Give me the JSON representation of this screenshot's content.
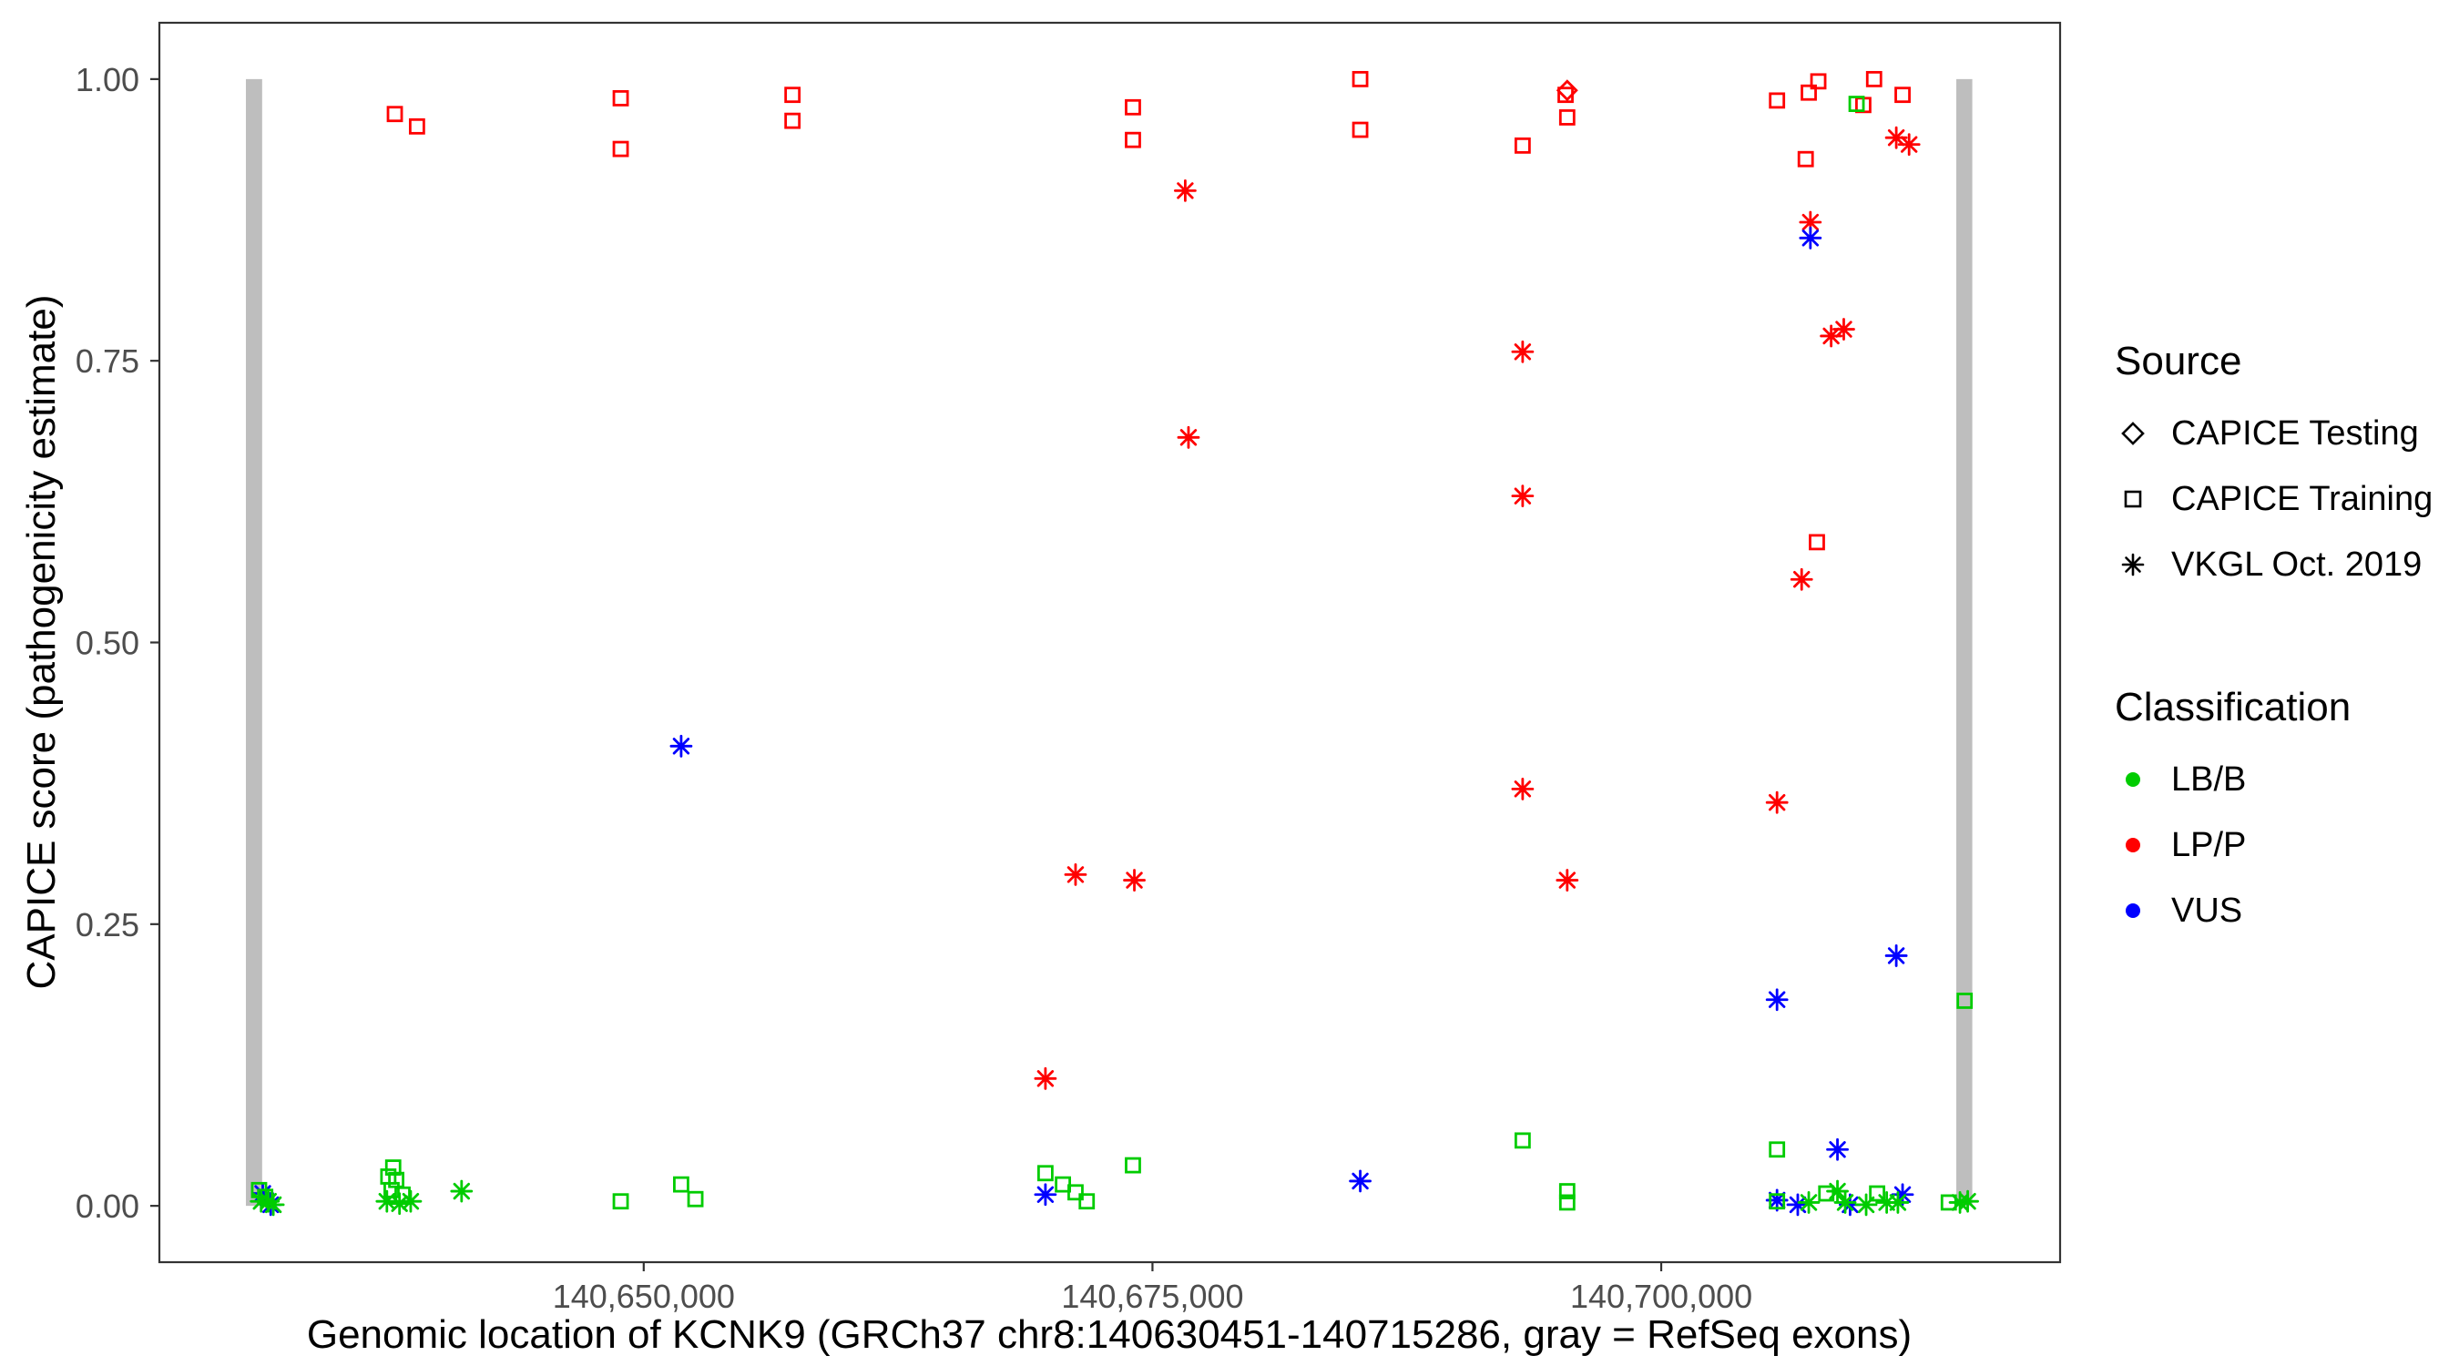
{
  "chart_data": {
    "type": "scatter",
    "title": "",
    "xlabel": "Genomic location of KCNK9 (GRCh37 chr8:140630451-140715286, gray = RefSeq exons)",
    "ylabel": "CAPICE score (pathogenicity estimate)",
    "xlim": [
      140626200,
      140719600
    ],
    "ylim": [
      -0.05,
      1.05
    ],
    "grid": false,
    "legend_position": "right",
    "x_ticks": [
      {
        "value": 140650000,
        "label": "140,650,000"
      },
      {
        "value": 140675000,
        "label": "140,675,000"
      },
      {
        "value": 140700000,
        "label": "140,700,000"
      }
    ],
    "y_ticks": [
      {
        "value": 0.0,
        "label": "0.00"
      },
      {
        "value": 0.25,
        "label": "0.25"
      },
      {
        "value": 0.5,
        "label": "0.50"
      },
      {
        "value": 0.75,
        "label": "0.75"
      },
      {
        "value": 1.0,
        "label": "1.00"
      }
    ],
    "colors": {
      "LB/B": "#00CC00",
      "LP/P": "#FF0000",
      "VUS": "#0000FF",
      "exon": "#BEBEBE",
      "axis": "#333333",
      "tick_text": "#4d4d4d"
    },
    "exons": [
      {
        "start": 140630451,
        "end": 140631250
      },
      {
        "start": 140714500,
        "end": 140715286
      }
    ],
    "points": [
      {
        "x": 140637770,
        "y": 0.969,
        "source": "training",
        "class": "LP/P"
      },
      {
        "x": 140638860,
        "y": 0.958,
        "source": "training",
        "class": "LP/P"
      },
      {
        "x": 140648870,
        "y": 0.983,
        "source": "training",
        "class": "LP/P"
      },
      {
        "x": 140648870,
        "y": 0.938,
        "source": "training",
        "class": "LP/P"
      },
      {
        "x": 140657310,
        "y": 0.986,
        "source": "training",
        "class": "LP/P"
      },
      {
        "x": 140657310,
        "y": 0.963,
        "source": "training",
        "class": "LP/P"
      },
      {
        "x": 140674040,
        "y": 0.975,
        "source": "training",
        "class": "LP/P"
      },
      {
        "x": 140674040,
        "y": 0.946,
        "source": "training",
        "class": "LP/P"
      },
      {
        "x": 140685210,
        "y": 1.0,
        "source": "training",
        "class": "LP/P"
      },
      {
        "x": 140685210,
        "y": 0.955,
        "source": "training",
        "class": "LP/P"
      },
      {
        "x": 140693190,
        "y": 0.941,
        "source": "training",
        "class": "LP/P"
      },
      {
        "x": 140695380,
        "y": 0.966,
        "source": "training",
        "class": "LP/P"
      },
      {
        "x": 140695300,
        "y": 0.986,
        "source": "training",
        "class": "LP/P"
      },
      {
        "x": 140705690,
        "y": 0.981,
        "source": "training",
        "class": "LP/P"
      },
      {
        "x": 140707250,
        "y": 0.988,
        "source": "training",
        "class": "LP/P"
      },
      {
        "x": 140707720,
        "y": 0.998,
        "source": "training",
        "class": "LP/P"
      },
      {
        "x": 140707100,
        "y": 0.929,
        "source": "training",
        "class": "LP/P"
      },
      {
        "x": 140709930,
        "y": 0.977,
        "source": "training",
        "class": "LP/P"
      },
      {
        "x": 140710460,
        "y": 1.0,
        "source": "training",
        "class": "LP/P"
      },
      {
        "x": 140711860,
        "y": 0.986,
        "source": "training",
        "class": "LP/P"
      },
      {
        "x": 140707650,
        "y": 0.589,
        "source": "training",
        "class": "LP/P"
      },
      {
        "x": 140695380,
        "y": 0.99,
        "source": "testing",
        "class": "LP/P"
      },
      {
        "x": 140676610,
        "y": 0.901,
        "source": "vkgl",
        "class": "LP/P"
      },
      {
        "x": 140676770,
        "y": 0.682,
        "source": "vkgl",
        "class": "LP/P"
      },
      {
        "x": 140671220,
        "y": 0.294,
        "source": "vkgl",
        "class": "LP/P"
      },
      {
        "x": 140674110,
        "y": 0.289,
        "source": "vkgl",
        "class": "LP/P"
      },
      {
        "x": 140669740,
        "y": 0.113,
        "source": "vkgl",
        "class": "LP/P"
      },
      {
        "x": 140693190,
        "y": 0.758,
        "source": "vkgl",
        "class": "LP/P"
      },
      {
        "x": 140693190,
        "y": 0.63,
        "source": "vkgl",
        "class": "LP/P"
      },
      {
        "x": 140693190,
        "y": 0.37,
        "source": "vkgl",
        "class": "LP/P"
      },
      {
        "x": 140695380,
        "y": 0.289,
        "source": "vkgl",
        "class": "LP/P"
      },
      {
        "x": 140707330,
        "y": 0.873,
        "source": "vkgl",
        "class": "LP/P"
      },
      {
        "x": 140708350,
        "y": 0.772,
        "source": "vkgl",
        "class": "LP/P"
      },
      {
        "x": 140708970,
        "y": 0.778,
        "source": "vkgl",
        "class": "LP/P"
      },
      {
        "x": 140706900,
        "y": 0.556,
        "source": "vkgl",
        "class": "LP/P"
      },
      {
        "x": 140705690,
        "y": 0.358,
        "source": "vkgl",
        "class": "LP/P"
      },
      {
        "x": 140711550,
        "y": 0.948,
        "source": "vkgl",
        "class": "LP/P"
      },
      {
        "x": 140712180,
        "y": 0.942,
        "source": "vkgl",
        "class": "LP/P"
      },
      {
        "x": 140651840,
        "y": 0.408,
        "source": "vkgl",
        "class": "VUS"
      },
      {
        "x": 140707330,
        "y": 0.859,
        "source": "vkgl",
        "class": "VUS"
      },
      {
        "x": 140685210,
        "y": 0.022,
        "source": "vkgl",
        "class": "VUS"
      },
      {
        "x": 140669740,
        "y": 0.01,
        "source": "vkgl",
        "class": "VUS"
      },
      {
        "x": 140705690,
        "y": 0.183,
        "source": "vkgl",
        "class": "VUS"
      },
      {
        "x": 140711550,
        "y": 0.222,
        "source": "vkgl",
        "class": "VUS"
      },
      {
        "x": 140708660,
        "y": 0.05,
        "source": "vkgl",
        "class": "VUS"
      },
      {
        "x": 140705690,
        "y": 0.005,
        "source": "vkgl",
        "class": "VUS"
      },
      {
        "x": 140706710,
        "y": 0.001,
        "source": "vkgl",
        "class": "VUS"
      },
      {
        "x": 140709280,
        "y": 0.001,
        "source": "vkgl",
        "class": "VUS"
      },
      {
        "x": 140711860,
        "y": 0.01,
        "source": "vkgl",
        "class": "VUS"
      },
      {
        "x": 140631280,
        "y": 0.011,
        "source": "vkgl",
        "class": "VUS"
      },
      {
        "x": 140631670,
        "y": 0.001,
        "source": "vkgl",
        "class": "VUS"
      },
      {
        "x": 140631100,
        "y": 0.014,
        "source": "training",
        "class": "LB/B"
      },
      {
        "x": 140631400,
        "y": 0.008,
        "source": "training",
        "class": "LB/B"
      },
      {
        "x": 140637690,
        "y": 0.034,
        "source": "training",
        "class": "LB/B"
      },
      {
        "x": 140637450,
        "y": 0.026,
        "source": "training",
        "class": "LB/B"
      },
      {
        "x": 140637840,
        "y": 0.023,
        "source": "training",
        "class": "LB/B"
      },
      {
        "x": 140637610,
        "y": 0.014,
        "source": "training",
        "class": "LB/B"
      },
      {
        "x": 140638150,
        "y": 0.01,
        "source": "training",
        "class": "LB/B"
      },
      {
        "x": 140648870,
        "y": 0.004,
        "source": "training",
        "class": "LB/B"
      },
      {
        "x": 140651840,
        "y": 0.019,
        "source": "training",
        "class": "LB/B"
      },
      {
        "x": 140652540,
        "y": 0.006,
        "source": "training",
        "class": "LB/B"
      },
      {
        "x": 140669740,
        "y": 0.029,
        "source": "training",
        "class": "LB/B"
      },
      {
        "x": 140670600,
        "y": 0.019,
        "source": "training",
        "class": "LB/B"
      },
      {
        "x": 140671220,
        "y": 0.012,
        "source": "training",
        "class": "LB/B"
      },
      {
        "x": 140671770,
        "y": 0.004,
        "source": "training",
        "class": "LB/B"
      },
      {
        "x": 140674040,
        "y": 0.036,
        "source": "training",
        "class": "LB/B"
      },
      {
        "x": 140693190,
        "y": 0.058,
        "source": "training",
        "class": "LB/B"
      },
      {
        "x": 140695380,
        "y": 0.013,
        "source": "training",
        "class": "LB/B"
      },
      {
        "x": 140695380,
        "y": 0.003,
        "source": "training",
        "class": "LB/B"
      },
      {
        "x": 140705690,
        "y": 0.05,
        "source": "training",
        "class": "LB/B"
      },
      {
        "x": 140705690,
        "y": 0.004,
        "source": "training",
        "class": "LB/B"
      },
      {
        "x": 140709600,
        "y": 0.978,
        "source": "training",
        "class": "LB/B"
      },
      {
        "x": 140714910,
        "y": 0.182,
        "source": "training",
        "class": "LB/B"
      },
      {
        "x": 140708110,
        "y": 0.011,
        "source": "training",
        "class": "LB/B"
      },
      {
        "x": 140710610,
        "y": 0.011,
        "source": "training",
        "class": "LB/B"
      },
      {
        "x": 140714130,
        "y": 0.003,
        "source": "training",
        "class": "LB/B"
      },
      {
        "x": 140631200,
        "y": 0.004,
        "source": "vkgl",
        "class": "LB/B"
      },
      {
        "x": 140631560,
        "y": 0.004,
        "source": "vkgl",
        "class": "LB/B"
      },
      {
        "x": 140631800,
        "y": 0.001,
        "source": "vkgl",
        "class": "LB/B"
      },
      {
        "x": 140637380,
        "y": 0.004,
        "source": "vkgl",
        "class": "LB/B"
      },
      {
        "x": 140638000,
        "y": 0.002,
        "source": "vkgl",
        "class": "LB/B"
      },
      {
        "x": 140638550,
        "y": 0.004,
        "source": "vkgl",
        "class": "LB/B"
      },
      {
        "x": 140641050,
        "y": 0.013,
        "source": "vkgl",
        "class": "LB/B"
      },
      {
        "x": 140707250,
        "y": 0.003,
        "source": "vkgl",
        "class": "LB/B"
      },
      {
        "x": 140708660,
        "y": 0.013,
        "source": "vkgl",
        "class": "LB/B"
      },
      {
        "x": 140709040,
        "y": 0.003,
        "source": "vkgl",
        "class": "LB/B"
      },
      {
        "x": 140710070,
        "y": 0.001,
        "source": "vkgl",
        "class": "LB/B"
      },
      {
        "x": 140711080,
        "y": 0.003,
        "source": "vkgl",
        "class": "LB/B"
      },
      {
        "x": 140711630,
        "y": 0.003,
        "source": "vkgl",
        "class": "LB/B"
      },
      {
        "x": 140714680,
        "y": 0.003,
        "source": "vkgl",
        "class": "LB/B"
      },
      {
        "x": 140715060,
        "y": 0.004,
        "source": "vkgl",
        "class": "LB/B"
      }
    ]
  },
  "legend": {
    "source": {
      "title": "Source",
      "items": [
        {
          "label": "CAPICE Testing",
          "marker": "diamond"
        },
        {
          "label": "CAPICE Training",
          "marker": "square"
        },
        {
          "label": "VKGL Oct. 2019",
          "marker": "asterisk"
        }
      ]
    },
    "classification": {
      "title": "Classification",
      "items": [
        {
          "label": "LB/B",
          "color": "#00CC00"
        },
        {
          "label": "LP/P",
          "color": "#FF0000"
        },
        {
          "label": "VUS",
          "color": "#0000FF"
        }
      ]
    }
  }
}
